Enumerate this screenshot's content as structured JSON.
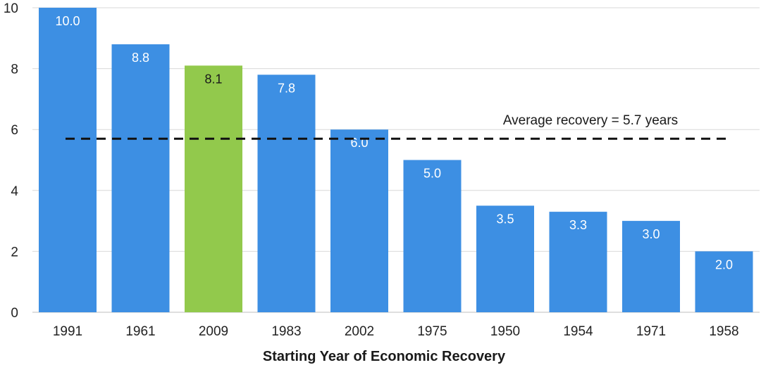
{
  "chart_data": {
    "type": "bar",
    "categories": [
      "1991",
      "1961",
      "2009",
      "1983",
      "2002",
      "1975",
      "1950",
      "1954",
      "1971",
      "1958"
    ],
    "values": [
      10.0,
      8.8,
      8.1,
      7.8,
      6.0,
      5.0,
      3.5,
      3.3,
      3.0,
      2.0
    ],
    "value_labels": [
      "10.0",
      "8.8",
      "8.1",
      "7.8",
      "6.0",
      "5.0",
      "3.5",
      "3.3",
      "3.0",
      "2.0"
    ],
    "highlight_category": "2009",
    "title": "",
    "xlabel": "Starting Year of Economic Recovery",
    "ylabel": "",
    "ylim": [
      0,
      10
    ],
    "yticks": [
      0,
      2,
      4,
      6,
      8,
      10
    ],
    "ytick_labels": [
      "0",
      "2",
      "4",
      "6",
      "8",
      "10"
    ],
    "grid": true,
    "reference_line": {
      "value": 5.7,
      "style": "dashed",
      "label": "Average recovery = 5.7 years"
    },
    "colors": {
      "bar": "#3d8fe3",
      "highlight": "#92c94c",
      "grid": "#d9d9d9",
      "reference_line": "#111111"
    }
  }
}
